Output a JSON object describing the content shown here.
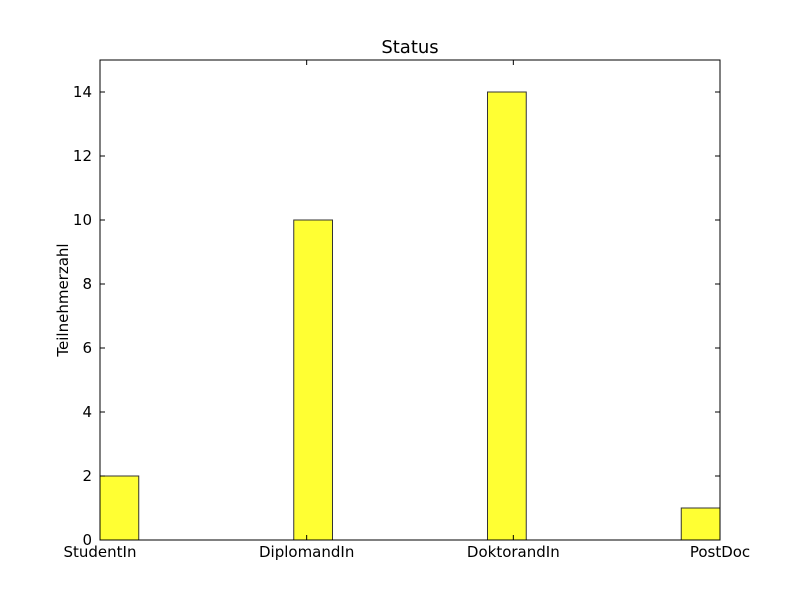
{
  "chart_data": {
    "type": "bar",
    "title": "Status",
    "y_label": "Teilnehmerzahl",
    "categories": [
      "StudentIn",
      "DiplomandIn",
      "DoktorandIn",
      "PostDoc"
    ],
    "values": [
      2,
      10,
      14,
      1
    ],
    "color": "#ffff33",
    "ylim": [
      0,
      15
    ],
    "yticks": [
      0,
      2,
      4,
      6,
      8,
      10,
      12,
      14
    ]
  }
}
